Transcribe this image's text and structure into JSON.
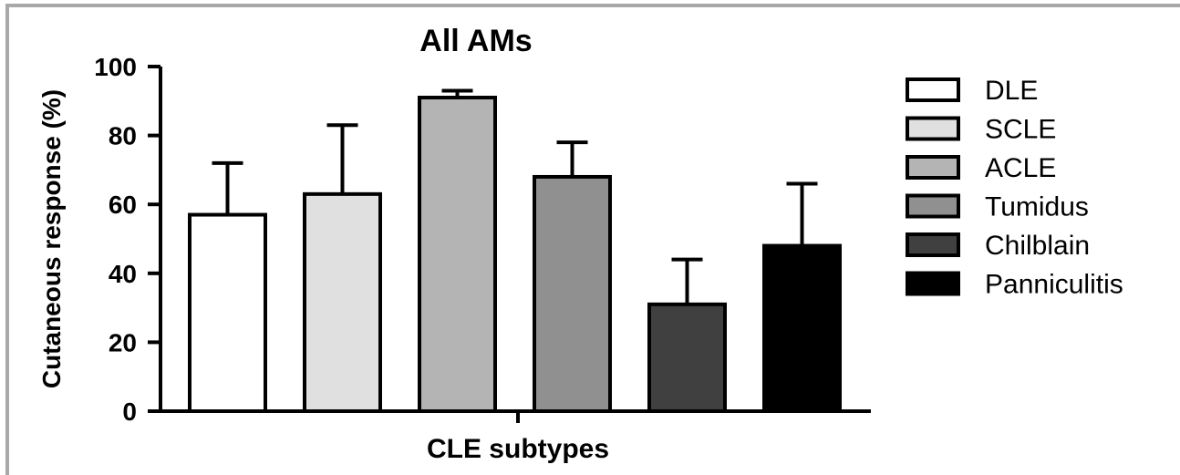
{
  "chart_data": {
    "type": "bar",
    "title": "All AMs",
    "xlabel": "CLE subtypes",
    "ylabel": "Cutaneous response (%)",
    "ylim": [
      0,
      100
    ],
    "yticks": [
      0,
      20,
      40,
      60,
      80,
      100
    ],
    "categories": [
      "DLE",
      "SCLE",
      "ACLE",
      "Tumidus",
      "Chilblain",
      "Panniculitis"
    ],
    "values": [
      57,
      63,
      91,
      68,
      31,
      48
    ],
    "error_upper": [
      72,
      83,
      93,
      78,
      44,
      66
    ],
    "colors": [
      "#ffffff",
      "#e0e0e0",
      "#b4b4b4",
      "#909090",
      "#404040",
      "#000000"
    ],
    "legend_position": "right",
    "grid": false
  }
}
